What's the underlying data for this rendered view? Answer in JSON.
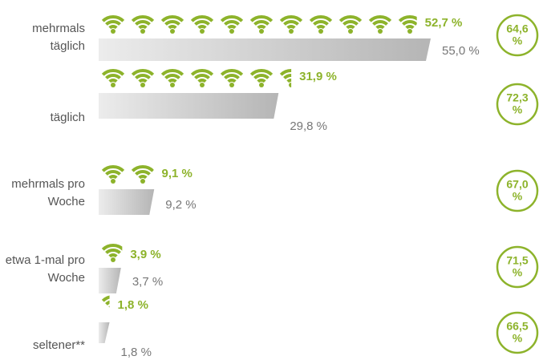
{
  "chart_data": {
    "type": "bar",
    "categories": [
      "mehrmals täglich",
      "täglich",
      "mehrmals pro Woche",
      "etwa 1-mal pro Woche",
      "seltener**"
    ],
    "xlim": [
      0,
      55
    ],
    "series": [
      {
        "color": "#8db32b",
        "values": [
          52.7,
          31.9,
          9.1,
          3.9,
          1.8
        ],
        "value_labels": [
          "52,7 %",
          "31,9 %",
          "9,1 %",
          "3,9 %",
          "1,8 %"
        ]
      },
      {
        "color": "#c4c4c4",
        "values": [
          55.0,
          29.8,
          9.2,
          3.7,
          1.8
        ],
        "value_labels": [
          "55,0 %",
          "29,8 %",
          "9,2 %",
          "3,7 %",
          "1,8 %"
        ]
      },
      {
        "color": "#8db32b",
        "values": [
          64.6,
          72.3,
          67.0,
          71.5,
          66.5
        ],
        "value_labels": [
          "64,6 %",
          "72,3 %",
          "67,0 %",
          "71,5 %",
          "66,5 %"
        ]
      }
    ]
  }
}
